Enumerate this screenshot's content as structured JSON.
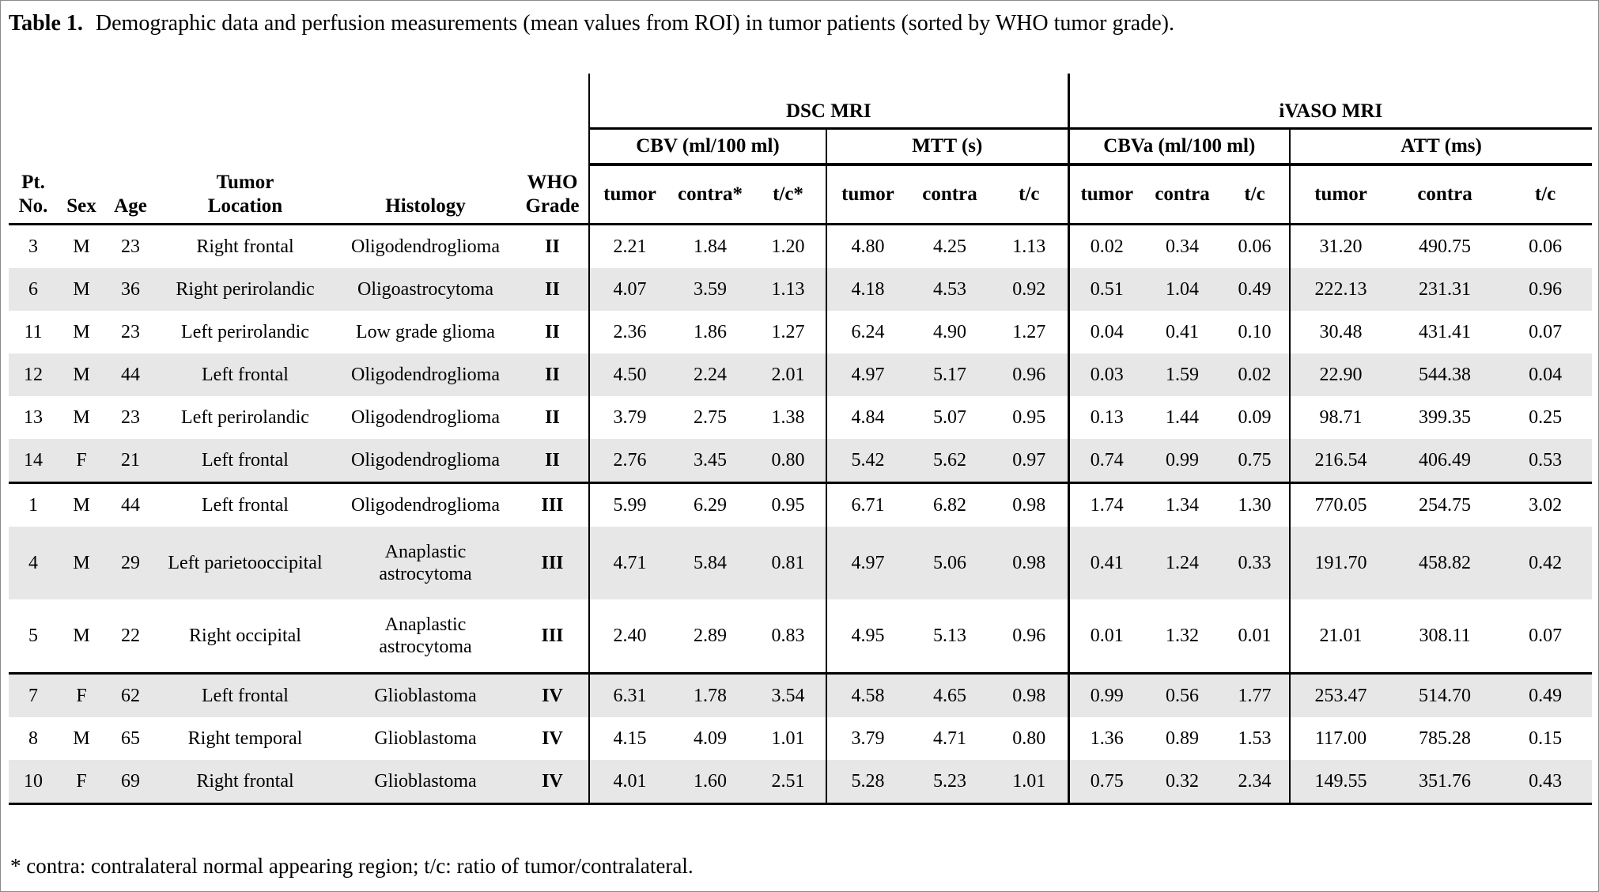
{
  "title": {
    "label": "Table 1.",
    "text": "Demographic data and perfusion measurements (mean values from ROI) in tumor patients (sorted by WHO tumor grade)."
  },
  "table": {
    "left_headers": [
      "Pt.\nNo.",
      "Sex",
      "Age",
      "Tumor\nLocation",
      "Histology",
      "WHO\nGrade"
    ],
    "modality_headers": [
      "DSC MRI",
      "iVASO MRI"
    ],
    "group_headers": [
      "CBV (ml/100 ml)",
      "MTT (s)",
      "CBVa (ml/100 ml)",
      "ATT (ms)"
    ],
    "sub_headers": [
      "tumor",
      "contra*",
      "t/c*",
      "tumor",
      "contra",
      "t/c",
      "tumor",
      "contra",
      "t/c",
      "tumor",
      "contra",
      "t/c"
    ],
    "value_column_keys": [
      "cbv-tumor",
      "cbv-contra",
      "cbv-tc",
      "mtt-tumor",
      "mtt-contra",
      "mtt-tc",
      "cbva-tumor",
      "cbva-contra",
      "cbva-tc",
      "att-tumor",
      "att-contra",
      "att-tc"
    ],
    "rows": [
      {
        "pt": "3",
        "sex": "M",
        "age": "23",
        "location": "Right frontal",
        "histology": "Oligodendroglioma",
        "grade": "II",
        "shaded": false,
        "group_start": false,
        "tall": false,
        "values": [
          "2.21",
          "1.84",
          "1.20",
          "4.80",
          "4.25",
          "1.13",
          "0.02",
          "0.34",
          "0.06",
          "31.20",
          "490.75",
          "0.06"
        ]
      },
      {
        "pt": "6",
        "sex": "M",
        "age": "36",
        "location": "Right perirolandic",
        "histology": "Oligoastrocytoma",
        "grade": "II",
        "shaded": true,
        "group_start": false,
        "tall": false,
        "values": [
          "4.07",
          "3.59",
          "1.13",
          "4.18",
          "4.53",
          "0.92",
          "0.51",
          "1.04",
          "0.49",
          "222.13",
          "231.31",
          "0.96"
        ]
      },
      {
        "pt": "11",
        "sex": "M",
        "age": "23",
        "location": "Left perirolandic",
        "histology": "Low grade glioma",
        "grade": "II",
        "shaded": false,
        "group_start": false,
        "tall": false,
        "values": [
          "2.36",
          "1.86",
          "1.27",
          "6.24",
          "4.90",
          "1.27",
          "0.04",
          "0.41",
          "0.10",
          "30.48",
          "431.41",
          "0.07"
        ]
      },
      {
        "pt": "12",
        "sex": "M",
        "age": "44",
        "location": "Left frontal",
        "histology": "Oligodendroglioma",
        "grade": "II",
        "shaded": true,
        "group_start": false,
        "tall": false,
        "values": [
          "4.50",
          "2.24",
          "2.01",
          "4.97",
          "5.17",
          "0.96",
          "0.03",
          "1.59",
          "0.02",
          "22.90",
          "544.38",
          "0.04"
        ]
      },
      {
        "pt": "13",
        "sex": "M",
        "age": "23",
        "location": "Left perirolandic",
        "histology": "Oligodendroglioma",
        "grade": "II",
        "shaded": false,
        "group_start": false,
        "tall": false,
        "values": [
          "3.79",
          "2.75",
          "1.38",
          "4.84",
          "5.07",
          "0.95",
          "0.13",
          "1.44",
          "0.09",
          "98.71",
          "399.35",
          "0.25"
        ]
      },
      {
        "pt": "14",
        "sex": "F",
        "age": "21",
        "location": "Left frontal",
        "histology": "Oligodendroglioma",
        "grade": "II",
        "shaded": true,
        "group_start": false,
        "tall": false,
        "values": [
          "2.76",
          "3.45",
          "0.80",
          "5.42",
          "5.62",
          "0.97",
          "0.74",
          "0.99",
          "0.75",
          "216.54",
          "406.49",
          "0.53"
        ]
      },
      {
        "pt": "1",
        "sex": "M",
        "age": "44",
        "location": "Left frontal",
        "histology": "Oligodendroglioma",
        "grade": "III",
        "shaded": false,
        "group_start": true,
        "tall": false,
        "values": [
          "5.99",
          "6.29",
          "0.95",
          "6.71",
          "6.82",
          "0.98",
          "1.74",
          "1.34",
          "1.30",
          "770.05",
          "254.75",
          "3.02"
        ]
      },
      {
        "pt": "4",
        "sex": "M",
        "age": "29",
        "location": "Left parietooccipital",
        "histology": "Anaplastic astrocytoma",
        "grade": "III",
        "shaded": true,
        "group_start": false,
        "tall": true,
        "values": [
          "4.71",
          "5.84",
          "0.81",
          "4.97",
          "5.06",
          "0.98",
          "0.41",
          "1.24",
          "0.33",
          "191.70",
          "458.82",
          "0.42"
        ]
      },
      {
        "pt": "5",
        "sex": "M",
        "age": "22",
        "location": "Right occipital",
        "histology": "Anaplastic astrocytoma",
        "grade": "III",
        "shaded": false,
        "group_start": false,
        "tall": true,
        "values": [
          "2.40",
          "2.89",
          "0.83",
          "4.95",
          "5.13",
          "0.96",
          "0.01",
          "1.32",
          "0.01",
          "21.01",
          "308.11",
          "0.07"
        ]
      },
      {
        "pt": "7",
        "sex": "F",
        "age": "62",
        "location": "Left frontal",
        "histology": "Glioblastoma",
        "grade": "IV",
        "shaded": true,
        "group_start": true,
        "tall": false,
        "values": [
          "6.31",
          "1.78",
          "3.54",
          "4.58",
          "4.65",
          "0.98",
          "0.99",
          "0.56",
          "1.77",
          "253.47",
          "514.70",
          "0.49"
        ]
      },
      {
        "pt": "8",
        "sex": "M",
        "age": "65",
        "location": "Right temporal",
        "histology": "Glioblastoma",
        "grade": "IV",
        "shaded": false,
        "group_start": false,
        "tall": false,
        "values": [
          "4.15",
          "4.09",
          "1.01",
          "3.79",
          "4.71",
          "0.80",
          "1.36",
          "0.89",
          "1.53",
          "117.00",
          "785.28",
          "0.15"
        ]
      },
      {
        "pt": "10",
        "sex": "F",
        "age": "69",
        "location": "Right frontal",
        "histology": "Glioblastoma",
        "grade": "IV",
        "shaded": true,
        "group_start": false,
        "tall": false,
        "values": [
          "4.01",
          "1.60",
          "2.51",
          "5.28",
          "5.23",
          "1.01",
          "0.75",
          "0.32",
          "2.34",
          "149.55",
          "351.76",
          "0.43"
        ]
      }
    ]
  },
  "footnote": "* contra: contralateral normal appearing region; t/c: ratio of tumor/contralateral.",
  "colors": {
    "text": "#000000",
    "background": "#ffffff",
    "row_shade": "#e7e7e7",
    "rule": "#000000",
    "frame": "#8a8a8a"
  }
}
